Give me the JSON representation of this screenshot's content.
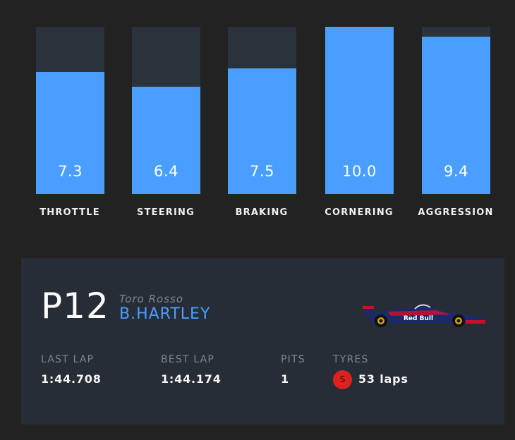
{
  "stats": [
    {
      "label": "THROTTLE",
      "value": "7.3",
      "fraction": 0.73
    },
    {
      "label": "STEERING",
      "value": "6.4",
      "fraction": 0.64
    },
    {
      "label": "BRAKING",
      "value": "7.5",
      "fraction": 0.75
    },
    {
      "label": "CORNERING",
      "value": "10.0",
      "fraction": 1.0
    },
    {
      "label": "AGGRESSION",
      "value": "9.4",
      "fraction": 0.94
    }
  ],
  "driver": {
    "position": "P12",
    "team": "Toro Rosso",
    "name": "B.HARTLEY",
    "car_logo": "Red Bull"
  },
  "info": {
    "last_lap_label": "LAST LAP",
    "last_lap": "1:44.708",
    "best_lap_label": "BEST LAP",
    "best_lap": "1:44.174",
    "pits_label": "PITS",
    "pits": "1",
    "tyres_label": "TYRES",
    "tyre_compound": "S",
    "tyre_laps": "53 laps"
  },
  "colors": {
    "accent": "#4a9eff",
    "tyre_soft": "#e0201c",
    "background": "#222222",
    "card": "#262d36"
  },
  "icons": {
    "car": "f1-car-icon",
    "tyre": "tyre-compound-icon"
  }
}
